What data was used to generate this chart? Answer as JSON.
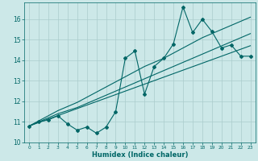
{
  "xlabel": "Humidex (Indice chaleur)",
  "ylabel": "",
  "bg_color": "#cce8e8",
  "grid_color": "#aacccc",
  "line_color": "#006666",
  "xlim": [
    -0.5,
    23.5
  ],
  "ylim": [
    10.0,
    16.8
  ],
  "yticks": [
    10,
    11,
    12,
    13,
    14,
    15,
    16
  ],
  "xticks": [
    0,
    1,
    2,
    3,
    4,
    5,
    6,
    7,
    8,
    9,
    10,
    11,
    12,
    13,
    14,
    15,
    16,
    17,
    18,
    19,
    20,
    21,
    22,
    23
  ],
  "x_data": [
    0,
    1,
    2,
    3,
    4,
    5,
    6,
    7,
    8,
    9,
    10,
    11,
    12,
    13,
    14,
    15,
    16,
    17,
    18,
    19,
    20,
    21,
    22,
    23
  ],
  "y_zigzag": [
    10.8,
    11.0,
    11.1,
    11.3,
    10.9,
    10.6,
    10.75,
    10.45,
    10.75,
    11.5,
    14.1,
    14.45,
    12.35,
    13.7,
    14.1,
    14.8,
    16.6,
    15.35,
    16.0,
    15.4,
    14.6,
    14.75,
    14.2,
    14.2
  ],
  "y_line1": [
    10.8,
    10.97,
    11.14,
    11.31,
    11.48,
    11.65,
    11.82,
    11.99,
    12.16,
    12.33,
    12.5,
    12.67,
    12.84,
    13.01,
    13.18,
    13.35,
    13.52,
    13.69,
    13.86,
    14.03,
    14.2,
    14.37,
    14.54,
    14.71
  ],
  "y_line2": [
    10.8,
    11.0,
    11.2,
    11.4,
    11.55,
    11.7,
    11.9,
    12.1,
    12.3,
    12.5,
    12.7,
    12.9,
    13.1,
    13.3,
    13.5,
    13.7,
    13.9,
    14.1,
    14.3,
    14.5,
    14.7,
    14.9,
    15.1,
    15.3
  ],
  "y_line3": [
    10.8,
    11.05,
    11.3,
    11.55,
    11.75,
    11.95,
    12.2,
    12.45,
    12.7,
    12.95,
    13.2,
    13.45,
    13.7,
    13.9,
    14.1,
    14.35,
    14.6,
    14.85,
    15.1,
    15.3,
    15.5,
    15.7,
    15.9,
    16.1
  ]
}
